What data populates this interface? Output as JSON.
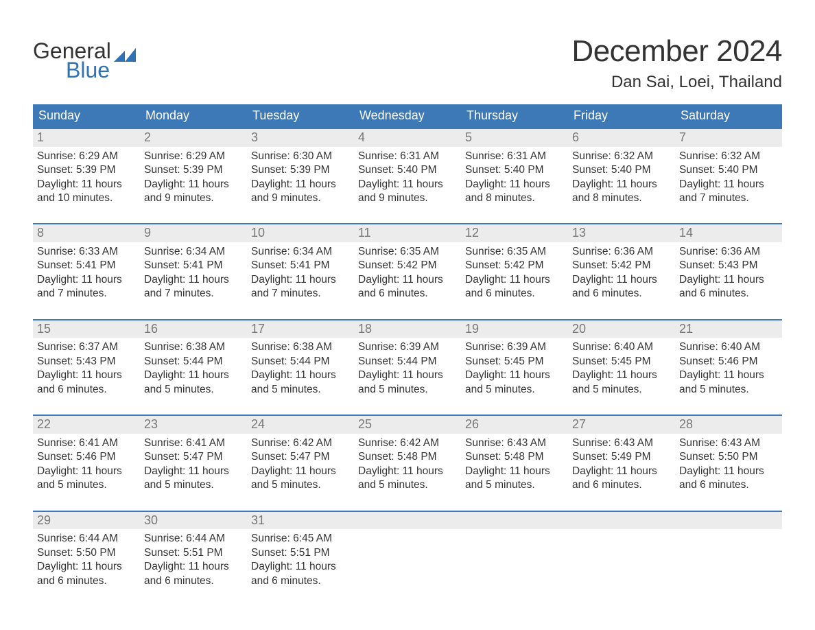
{
  "brand": {
    "word1": "General",
    "word2": "Blue",
    "flag_color": "#2f72b6",
    "text_color_dark": "#333333",
    "text_color_blue": "#2f72b6"
  },
  "header": {
    "title": "December 2024",
    "location": "Dan Sai, Loei, Thailand"
  },
  "colors": {
    "header_bg": "#3d78b7",
    "header_text": "#ffffff",
    "daynum_bg": "#ececec",
    "daynum_text": "#777777",
    "body_text": "#333333",
    "week_border": "#3d78b7",
    "page_bg": "#ffffff"
  },
  "fonts": {
    "title_size_pt": 33,
    "location_size_pt": 18,
    "weekday_size_pt": 14,
    "daynum_size_pt": 14,
    "body_size_pt": 12,
    "logo_size_pt": 24
  },
  "weekdays": [
    "Sunday",
    "Monday",
    "Tuesday",
    "Wednesday",
    "Thursday",
    "Friday",
    "Saturday"
  ],
  "weeks": [
    [
      {
        "n": "1",
        "sunrise": "Sunrise: 6:29 AM",
        "sunset": "Sunset: 5:39 PM",
        "day1": "Daylight: 11 hours",
        "day2": "and 10 minutes."
      },
      {
        "n": "2",
        "sunrise": "Sunrise: 6:29 AM",
        "sunset": "Sunset: 5:39 PM",
        "day1": "Daylight: 11 hours",
        "day2": "and 9 minutes."
      },
      {
        "n": "3",
        "sunrise": "Sunrise: 6:30 AM",
        "sunset": "Sunset: 5:39 PM",
        "day1": "Daylight: 11 hours",
        "day2": "and 9 minutes."
      },
      {
        "n": "4",
        "sunrise": "Sunrise: 6:31 AM",
        "sunset": "Sunset: 5:40 PM",
        "day1": "Daylight: 11 hours",
        "day2": "and 9 minutes."
      },
      {
        "n": "5",
        "sunrise": "Sunrise: 6:31 AM",
        "sunset": "Sunset: 5:40 PM",
        "day1": "Daylight: 11 hours",
        "day2": "and 8 minutes."
      },
      {
        "n": "6",
        "sunrise": "Sunrise: 6:32 AM",
        "sunset": "Sunset: 5:40 PM",
        "day1": "Daylight: 11 hours",
        "day2": "and 8 minutes."
      },
      {
        "n": "7",
        "sunrise": "Sunrise: 6:32 AM",
        "sunset": "Sunset: 5:40 PM",
        "day1": "Daylight: 11 hours",
        "day2": "and 7 minutes."
      }
    ],
    [
      {
        "n": "8",
        "sunrise": "Sunrise: 6:33 AM",
        "sunset": "Sunset: 5:41 PM",
        "day1": "Daylight: 11 hours",
        "day2": "and 7 minutes."
      },
      {
        "n": "9",
        "sunrise": "Sunrise: 6:34 AM",
        "sunset": "Sunset: 5:41 PM",
        "day1": "Daylight: 11 hours",
        "day2": "and 7 minutes."
      },
      {
        "n": "10",
        "sunrise": "Sunrise: 6:34 AM",
        "sunset": "Sunset: 5:41 PM",
        "day1": "Daylight: 11 hours",
        "day2": "and 7 minutes."
      },
      {
        "n": "11",
        "sunrise": "Sunrise: 6:35 AM",
        "sunset": "Sunset: 5:42 PM",
        "day1": "Daylight: 11 hours",
        "day2": "and 6 minutes."
      },
      {
        "n": "12",
        "sunrise": "Sunrise: 6:35 AM",
        "sunset": "Sunset: 5:42 PM",
        "day1": "Daylight: 11 hours",
        "day2": "and 6 minutes."
      },
      {
        "n": "13",
        "sunrise": "Sunrise: 6:36 AM",
        "sunset": "Sunset: 5:42 PM",
        "day1": "Daylight: 11 hours",
        "day2": "and 6 minutes."
      },
      {
        "n": "14",
        "sunrise": "Sunrise: 6:36 AM",
        "sunset": "Sunset: 5:43 PM",
        "day1": "Daylight: 11 hours",
        "day2": "and 6 minutes."
      }
    ],
    [
      {
        "n": "15",
        "sunrise": "Sunrise: 6:37 AM",
        "sunset": "Sunset: 5:43 PM",
        "day1": "Daylight: 11 hours",
        "day2": "and 6 minutes."
      },
      {
        "n": "16",
        "sunrise": "Sunrise: 6:38 AM",
        "sunset": "Sunset: 5:44 PM",
        "day1": "Daylight: 11 hours",
        "day2": "and 5 minutes."
      },
      {
        "n": "17",
        "sunrise": "Sunrise: 6:38 AM",
        "sunset": "Sunset: 5:44 PM",
        "day1": "Daylight: 11 hours",
        "day2": "and 5 minutes."
      },
      {
        "n": "18",
        "sunrise": "Sunrise: 6:39 AM",
        "sunset": "Sunset: 5:44 PM",
        "day1": "Daylight: 11 hours",
        "day2": "and 5 minutes."
      },
      {
        "n": "19",
        "sunrise": "Sunrise: 6:39 AM",
        "sunset": "Sunset: 5:45 PM",
        "day1": "Daylight: 11 hours",
        "day2": "and 5 minutes."
      },
      {
        "n": "20",
        "sunrise": "Sunrise: 6:40 AM",
        "sunset": "Sunset: 5:45 PM",
        "day1": "Daylight: 11 hours",
        "day2": "and 5 minutes."
      },
      {
        "n": "21",
        "sunrise": "Sunrise: 6:40 AM",
        "sunset": "Sunset: 5:46 PM",
        "day1": "Daylight: 11 hours",
        "day2": "and 5 minutes."
      }
    ],
    [
      {
        "n": "22",
        "sunrise": "Sunrise: 6:41 AM",
        "sunset": "Sunset: 5:46 PM",
        "day1": "Daylight: 11 hours",
        "day2": "and 5 minutes."
      },
      {
        "n": "23",
        "sunrise": "Sunrise: 6:41 AM",
        "sunset": "Sunset: 5:47 PM",
        "day1": "Daylight: 11 hours",
        "day2": "and 5 minutes."
      },
      {
        "n": "24",
        "sunrise": "Sunrise: 6:42 AM",
        "sunset": "Sunset: 5:47 PM",
        "day1": "Daylight: 11 hours",
        "day2": "and 5 minutes."
      },
      {
        "n": "25",
        "sunrise": "Sunrise: 6:42 AM",
        "sunset": "Sunset: 5:48 PM",
        "day1": "Daylight: 11 hours",
        "day2": "and 5 minutes."
      },
      {
        "n": "26",
        "sunrise": "Sunrise: 6:43 AM",
        "sunset": "Sunset: 5:48 PM",
        "day1": "Daylight: 11 hours",
        "day2": "and 5 minutes."
      },
      {
        "n": "27",
        "sunrise": "Sunrise: 6:43 AM",
        "sunset": "Sunset: 5:49 PM",
        "day1": "Daylight: 11 hours",
        "day2": "and 6 minutes."
      },
      {
        "n": "28",
        "sunrise": "Sunrise: 6:43 AM",
        "sunset": "Sunset: 5:50 PM",
        "day1": "Daylight: 11 hours",
        "day2": "and 6 minutes."
      }
    ],
    [
      {
        "n": "29",
        "sunrise": "Sunrise: 6:44 AM",
        "sunset": "Sunset: 5:50 PM",
        "day1": "Daylight: 11 hours",
        "day2": "and 6 minutes."
      },
      {
        "n": "30",
        "sunrise": "Sunrise: 6:44 AM",
        "sunset": "Sunset: 5:51 PM",
        "day1": "Daylight: 11 hours",
        "day2": "and 6 minutes."
      },
      {
        "n": "31",
        "sunrise": "Sunrise: 6:45 AM",
        "sunset": "Sunset: 5:51 PM",
        "day1": "Daylight: 11 hours",
        "day2": "and 6 minutes."
      },
      {
        "empty": true
      },
      {
        "empty": true
      },
      {
        "empty": true
      },
      {
        "empty": true
      }
    ]
  ]
}
